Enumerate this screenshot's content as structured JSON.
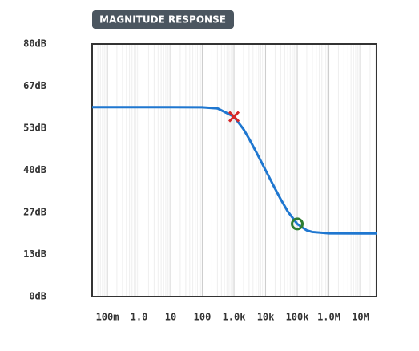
{
  "chart_data": {
    "type": "line",
    "title": "MAGNITUDE RESPONSE",
    "x": [
      0.033,
      0.1,
      1,
      10,
      100,
      300,
      1000,
      2000,
      3000,
      5000,
      10000,
      20000,
      30000,
      50000,
      100000,
      200000,
      300000,
      1000000,
      10000000,
      32000000
    ],
    "series": [
      {
        "color": "#1f77d0",
        "values": [
          60,
          60,
          60,
          60,
          59.96,
          59.63,
          56.99,
          53.01,
          50.0,
          45.86,
          40.0,
          34.14,
          30.83,
          26.99,
          23.01,
          20.97,
          20.46,
          20.04,
          20.0,
          20.0
        ]
      }
    ],
    "points": [
      {
        "x": 1000,
        "y": 56.99,
        "marker": "x",
        "color": "#d62728"
      },
      {
        "x": 100000,
        "y": 23.01,
        "marker": "o",
        "color": "#2e7d32"
      }
    ],
    "xscale": "log",
    "xlim": [
      0.033,
      32000000
    ],
    "xticks": [
      {
        "value": 0.1,
        "label": "100m"
      },
      {
        "value": 1,
        "label": "1.0"
      },
      10,
      100,
      {
        "value": 1000,
        "label": "1.0k"
      },
      {
        "value": 10000,
        "label": "10k"
      },
      {
        "value": 100000,
        "label": "100k"
      },
      {
        "value": 1000000,
        "label": "1.0M"
      },
      {
        "value": 10000000,
        "label": "10M"
      }
    ],
    "ylim": [
      0,
      80
    ],
    "yticks": [
      {
        "value": 0,
        "label": "0dB"
      },
      {
        "value": 13.33,
        "label": "13dB"
      },
      {
        "value": 26.67,
        "label": "27dB"
      },
      {
        "value": 40,
        "label": "40dB"
      },
      {
        "value": 53.33,
        "label": "53dB"
      },
      {
        "value": 66.67,
        "label": "67dB"
      },
      {
        "value": 80,
        "label": "80dB"
      }
    ],
    "grid": true
  }
}
